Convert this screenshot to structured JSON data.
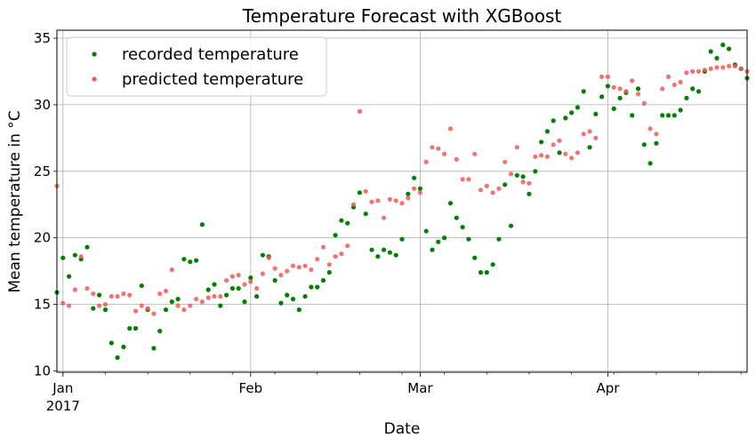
{
  "chart_data": {
    "type": "scatter",
    "title": "Temperature Forecast with XGBoost",
    "xlabel": "Date",
    "ylabel": "Mean temperature in °C",
    "ylim": [
      9.9,
      35.6
    ],
    "xlim": [
      "2016-12-31",
      "2017-04-24"
    ],
    "y_ticks": [
      10,
      15,
      20,
      25,
      30,
      35
    ],
    "x_ticks": [
      {
        "date": "2017-01-01",
        "label": "Jan",
        "sublabel": "2017"
      },
      {
        "date": "2017-02-01",
        "label": "Feb",
        "sublabel": ""
      },
      {
        "date": "2017-03-01",
        "label": "Mar",
        "sublabel": ""
      },
      {
        "date": "2017-04-01",
        "label": "Apr",
        "sublabel": ""
      }
    ],
    "grid": true,
    "legend_position": "top-left",
    "start_date": "2016-12-31",
    "series": [
      {
        "name": "recorded temperature",
        "color": "#008000",
        "values": [
          15.9,
          18.5,
          17.1,
          18.7,
          18.4,
          19.3,
          14.7,
          15.7,
          14.6,
          12.1,
          11.0,
          11.8,
          13.2,
          13.2,
          16.4,
          14.6,
          11.7,
          13.0,
          14.6,
          15.2,
          15.4,
          18.4,
          18.2,
          18.3,
          21.0,
          16.1,
          16.5,
          14.9,
          15.7,
          16.2,
          16.2,
          15.2,
          17.0,
          15.6,
          18.7,
          18.6,
          16.8,
          15.1,
          15.7,
          15.4,
          14.6,
          15.6,
          16.3,
          16.3,
          16.8,
          17.4,
          20.2,
          21.3,
          21.1,
          22.3,
          23.4,
          21.8,
          19.1,
          18.6,
          19.1,
          18.9,
          18.7,
          19.9,
          23.3,
          24.5,
          23.7,
          20.5,
          19.1,
          19.7,
          20.0,
          22.6,
          21.5,
          20.8,
          19.9,
          18.5,
          17.4,
          17.4,
          18.0,
          19.9,
          24.0,
          20.9,
          24.7,
          24.6,
          23.3,
          25.0,
          27.2,
          28.0,
          28.8,
          26.4,
          29.0,
          29.4,
          29.8,
          31.0,
          26.8,
          29.3,
          30.6,
          31.4,
          29.7,
          30.5,
          30.9,
          29.2,
          31.2,
          27.0,
          25.6,
          27.1,
          29.2,
          29.2,
          29.2,
          29.6,
          30.5,
          31.2,
          31.0,
          32.5,
          34.0,
          33.5,
          34.5,
          34.2,
          33.0,
          32.7,
          32.0
        ]
      },
      {
        "name": "predicted temperature",
        "color": "#f05a5a",
        "values": [
          23.9,
          15.1,
          14.9,
          16.1,
          18.6,
          16.2,
          15.8,
          14.9,
          15.0,
          15.6,
          15.6,
          15.8,
          15.7,
          14.5,
          14.9,
          14.7,
          14.3,
          15.8,
          16.0,
          17.6,
          14.9,
          14.6,
          14.9,
          15.4,
          15.2,
          15.5,
          15.6,
          15.6,
          16.8,
          17.1,
          17.2,
          16.5,
          16.7,
          16.2,
          17.3,
          18.5,
          17.7,
          17.2,
          17.5,
          17.9,
          17.8,
          17.9,
          17.6,
          18.4,
          19.3,
          18.0,
          18.6,
          18.8,
          19.4,
          22.5,
          29.5,
          23.5,
          22.7,
          22.8,
          21.5,
          22.9,
          22.8,
          22.6,
          23.0,
          23.7,
          23.4,
          25.7,
          26.8,
          26.7,
          26.3,
          28.2,
          25.9,
          24.4,
          24.4,
          26.3,
          23.6,
          23.9,
          23.4,
          23.7,
          25.7,
          24.8,
          26.8,
          24.2,
          24.1,
          26.1,
          26.2,
          26.1,
          27.0,
          27.3,
          26.3,
          26.0,
          26.4,
          27.8,
          28.0,
          27.5,
          32.1,
          32.1,
          31.3,
          31.2,
          31.0,
          31.8,
          30.8,
          30.1,
          28.2,
          27.8,
          31.2,
          32.1,
          31.5,
          31.7,
          32.4,
          32.5,
          32.5,
          32.6,
          32.7,
          32.8,
          32.8,
          32.9,
          32.9,
          32.7,
          32.5
        ]
      }
    ]
  }
}
